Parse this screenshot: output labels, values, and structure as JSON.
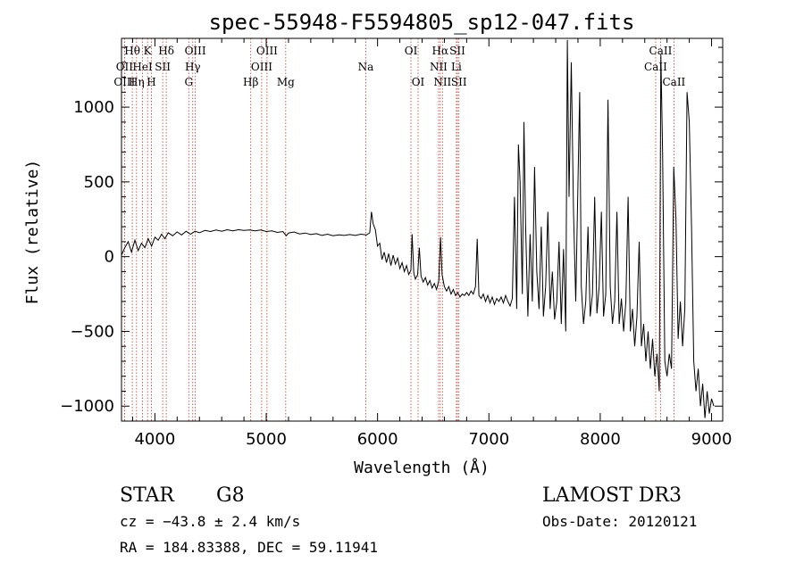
{
  "chart_data": {
    "type": "line",
    "title": "spec-55948-F5594805_sp12-047.fits",
    "xlabel": "Wavelength (Å)",
    "ylabel": "Flux (relative)",
    "xlim": [
      3700,
      9100
    ],
    "ylim": [
      -1100,
      1460
    ],
    "xticks": [
      4000,
      5000,
      6000,
      7000,
      8000,
      9000
    ],
    "yticks": [
      -1000,
      -500,
      0,
      500,
      1000
    ],
    "grid": false,
    "series": [
      {
        "color": "#000000",
        "points": [
          [
            3700,
            10
          ],
          [
            3730,
            60
          ],
          [
            3760,
            100
          ],
          [
            3790,
            30
          ],
          [
            3820,
            110
          ],
          [
            3850,
            40
          ],
          [
            3880,
            90
          ],
          [
            3910,
            60
          ],
          [
            3940,
            120
          ],
          [
            3970,
            70
          ],
          [
            4000,
            130
          ],
          [
            4030,
            110
          ],
          [
            4060,
            150
          ],
          [
            4090,
            120
          ],
          [
            4120,
            160
          ],
          [
            4160,
            140
          ],
          [
            4200,
            165
          ],
          [
            4240,
            145
          ],
          [
            4280,
            170
          ],
          [
            4320,
            150
          ],
          [
            4360,
            170
          ],
          [
            4400,
            160
          ],
          [
            4450,
            175
          ],
          [
            4500,
            168
          ],
          [
            4550,
            178
          ],
          [
            4600,
            170
          ],
          [
            4650,
            180
          ],
          [
            4700,
            172
          ],
          [
            4750,
            180
          ],
          [
            4800,
            175
          ],
          [
            4850,
            178
          ],
          [
            4900,
            172
          ],
          [
            4950,
            178
          ],
          [
            5000,
            168
          ],
          [
            5050,
            172
          ],
          [
            5100,
            162
          ],
          [
            5150,
            168
          ],
          [
            5180,
            140
          ],
          [
            5200,
            158
          ],
          [
            5250,
            165
          ],
          [
            5300,
            152
          ],
          [
            5350,
            158
          ],
          [
            5400,
            148
          ],
          [
            5450,
            154
          ],
          [
            5500,
            142
          ],
          [
            5550,
            150
          ],
          [
            5600,
            140
          ],
          [
            5650,
            146
          ],
          [
            5700,
            142
          ],
          [
            5750,
            148
          ],
          [
            5800,
            142
          ],
          [
            5850,
            150
          ],
          [
            5900,
            145
          ],
          [
            5930,
            160
          ],
          [
            5945,
            300
          ],
          [
            5960,
            220
          ],
          [
            5980,
            180
          ],
          [
            6000,
            70
          ],
          [
            6020,
            90
          ],
          [
            6040,
            -20
          ],
          [
            6060,
            30
          ],
          [
            6080,
            -40
          ],
          [
            6100,
            20
          ],
          [
            6120,
            -60
          ],
          [
            6140,
            10
          ],
          [
            6160,
            -50
          ],
          [
            6180,
            -10
          ],
          [
            6200,
            -80
          ],
          [
            6220,
            -40
          ],
          [
            6240,
            -100
          ],
          [
            6260,
            -60
          ],
          [
            6280,
            -120
          ],
          [
            6300,
            -90
          ],
          [
            6310,
            150
          ],
          [
            6325,
            -110
          ],
          [
            6340,
            -150
          ],
          [
            6360,
            -120
          ],
          [
            6375,
            60
          ],
          [
            6390,
            -130
          ],
          [
            6410,
            -170
          ],
          [
            6430,
            -140
          ],
          [
            6450,
            -190
          ],
          [
            6470,
            -160
          ],
          [
            6490,
            -210
          ],
          [
            6510,
            -180
          ],
          [
            6530,
            -220
          ],
          [
            6550,
            -160
          ],
          [
            6565,
            130
          ],
          [
            6580,
            -120
          ],
          [
            6600,
            -200
          ],
          [
            6620,
            -230
          ],
          [
            6640,
            -200
          ],
          [
            6660,
            -250
          ],
          [
            6680,
            -220
          ],
          [
            6700,
            -260
          ],
          [
            6720,
            -240
          ],
          [
            6740,
            -270
          ],
          [
            6760,
            -250
          ],
          [
            6780,
            -260
          ],
          [
            6800,
            -240
          ],
          [
            6820,
            -260
          ],
          [
            6840,
            -230
          ],
          [
            6860,
            -250
          ],
          [
            6880,
            -200
          ],
          [
            6895,
            120
          ],
          [
            6910,
            -260
          ],
          [
            6930,
            -280
          ],
          [
            6950,
            -250
          ],
          [
            6970,
            -300
          ],
          [
            6990,
            -260
          ],
          [
            7010,
            -310
          ],
          [
            7030,
            -270
          ],
          [
            7050,
            -320
          ],
          [
            7070,
            -280
          ],
          [
            7090,
            -300
          ],
          [
            7110,
            -270
          ],
          [
            7130,
            -310
          ],
          [
            7150,
            -260
          ],
          [
            7170,
            -300
          ],
          [
            7190,
            -330
          ],
          [
            7210,
            -280
          ],
          [
            7230,
            400
          ],
          [
            7250,
            -350
          ],
          [
            7265,
            750
          ],
          [
            7280,
            500
          ],
          [
            7300,
            -250
          ],
          [
            7315,
            900
          ],
          [
            7330,
            200
          ],
          [
            7350,
            -400
          ],
          [
            7370,
            150
          ],
          [
            7390,
            -300
          ],
          [
            7410,
            600
          ],
          [
            7430,
            -100
          ],
          [
            7450,
            -350
          ],
          [
            7470,
            200
          ],
          [
            7490,
            -400
          ],
          [
            7510,
            -200
          ],
          [
            7530,
            300
          ],
          [
            7550,
            -350
          ],
          [
            7570,
            -100
          ],
          [
            7590,
            -420
          ],
          [
            7610,
            -300
          ],
          [
            7630,
            100
          ],
          [
            7650,
            -450
          ],
          [
            7670,
            50
          ],
          [
            7690,
            -500
          ],
          [
            7705,
            1450
          ],
          [
            7720,
            400
          ],
          [
            7740,
            1300
          ],
          [
            7760,
            300
          ],
          [
            7780,
            -300
          ],
          [
            7800,
            500
          ],
          [
            7815,
            1100
          ],
          [
            7830,
            -200
          ],
          [
            7850,
            -450
          ],
          [
            7870,
            -300
          ],
          [
            7890,
            200
          ],
          [
            7910,
            -400
          ],
          [
            7930,
            -250
          ],
          [
            7950,
            400
          ],
          [
            7970,
            -380
          ],
          [
            7990,
            -200
          ],
          [
            8010,
            300
          ],
          [
            8030,
            -400
          ],
          [
            8050,
            -250
          ],
          [
            8070,
            1050
          ],
          [
            8090,
            -200
          ],
          [
            8110,
            -450
          ],
          [
            8130,
            -300
          ],
          [
            8150,
            300
          ],
          [
            8170,
            -450
          ],
          [
            8190,
            -280
          ],
          [
            8210,
            -500
          ],
          [
            8230,
            -300
          ],
          [
            8250,
            400
          ],
          [
            8270,
            -500
          ],
          [
            8290,
            -350
          ],
          [
            8310,
            -600
          ],
          [
            8330,
            -400
          ],
          [
            8350,
            100
          ],
          [
            8370,
            -600
          ],
          [
            8390,
            -450
          ],
          [
            8410,
            -700
          ],
          [
            8430,
            -500
          ],
          [
            8450,
            -750
          ],
          [
            8470,
            -550
          ],
          [
            8490,
            -800
          ],
          [
            8510,
            -650
          ],
          [
            8530,
            -900
          ],
          [
            8545,
            1350
          ],
          [
            8560,
            700
          ],
          [
            8580,
            -700
          ],
          [
            8600,
            -800
          ],
          [
            8620,
            -650
          ],
          [
            8640,
            -750
          ],
          [
            8660,
            600
          ],
          [
            8680,
            250
          ],
          [
            8700,
            -550
          ],
          [
            8720,
            -300
          ],
          [
            8740,
            -600
          ],
          [
            8760,
            -350
          ],
          [
            8780,
            1100
          ],
          [
            8800,
            900
          ],
          [
            8820,
            200
          ],
          [
            8840,
            -700
          ],
          [
            8860,
            -900
          ],
          [
            8880,
            -750
          ],
          [
            8900,
            -1000
          ],
          [
            8920,
            -850
          ],
          [
            8940,
            -1080
          ],
          [
            8960,
            -900
          ],
          [
            8980,
            -1050
          ],
          [
            9000,
            -950
          ],
          [
            9020,
            -1000
          ]
        ]
      }
    ],
    "lines": [
      {
        "label": "Hθ",
        "x": 3797,
        "row": 1
      },
      {
        "label": "OII",
        "x": 3727,
        "row": 2
      },
      {
        "label": "OIII",
        "x": 3727,
        "row": 3
      },
      {
        "label": "K",
        "x": 3934,
        "row": 1
      },
      {
        "label": "HeI",
        "x": 3889,
        "row": 2
      },
      {
        "label": "Hη",
        "x": 3835,
        "row": 3
      },
      {
        "label": "SII",
        "x": 4070,
        "row": 2
      },
      {
        "label": "H",
        "x": 3969,
        "row": 3
      },
      {
        "label": "Hδ",
        "x": 4102,
        "row": 1
      },
      {
        "label": "OIII",
        "x": 4363,
        "row": 1
      },
      {
        "label": "Hγ",
        "x": 4340,
        "row": 2
      },
      {
        "label": "G",
        "x": 4304,
        "row": 3
      },
      {
        "label": "OIII",
        "x": 5007,
        "row": 1
      },
      {
        "label": "OIII",
        "x": 4959,
        "row": 2
      },
      {
        "label": "Hβ",
        "x": 4861,
        "row": 3
      },
      {
        "label": "Mg",
        "x": 5175,
        "row": 3
      },
      {
        "label": "Na",
        "x": 5894,
        "row": 2
      },
      {
        "label": "OI",
        "x": 6300,
        "row": 1
      },
      {
        "label": "OI",
        "x": 6364,
        "row": 3
      },
      {
        "label": "Hα",
        "x": 6563,
        "row": 1
      },
      {
        "label": "SII",
        "x": 6717,
        "row": 1
      },
      {
        "label": "NII",
        "x": 6548,
        "row": 2
      },
      {
        "label": "Li",
        "x": 6708,
        "row": 2
      },
      {
        "label": "NII",
        "x": 6583,
        "row": 3
      },
      {
        "label": "SII",
        "x": 6731,
        "row": 3
      },
      {
        "label": "CaII",
        "x": 8542,
        "row": 1
      },
      {
        "label": "CaII",
        "x": 8498,
        "row": 2
      },
      {
        "label": "CaII",
        "x": 8662,
        "row": 3
      }
    ],
    "line_color": "#c0392b"
  },
  "info": {
    "object_class": "STAR",
    "subclass": "G8",
    "survey": "LAMOST DR3",
    "cz": "cz = −43.8 ± 2.4 km/s",
    "obs_date": "Obs-Date: 20120121",
    "coords": "RA = 184.83388, DEC =  59.11941"
  }
}
